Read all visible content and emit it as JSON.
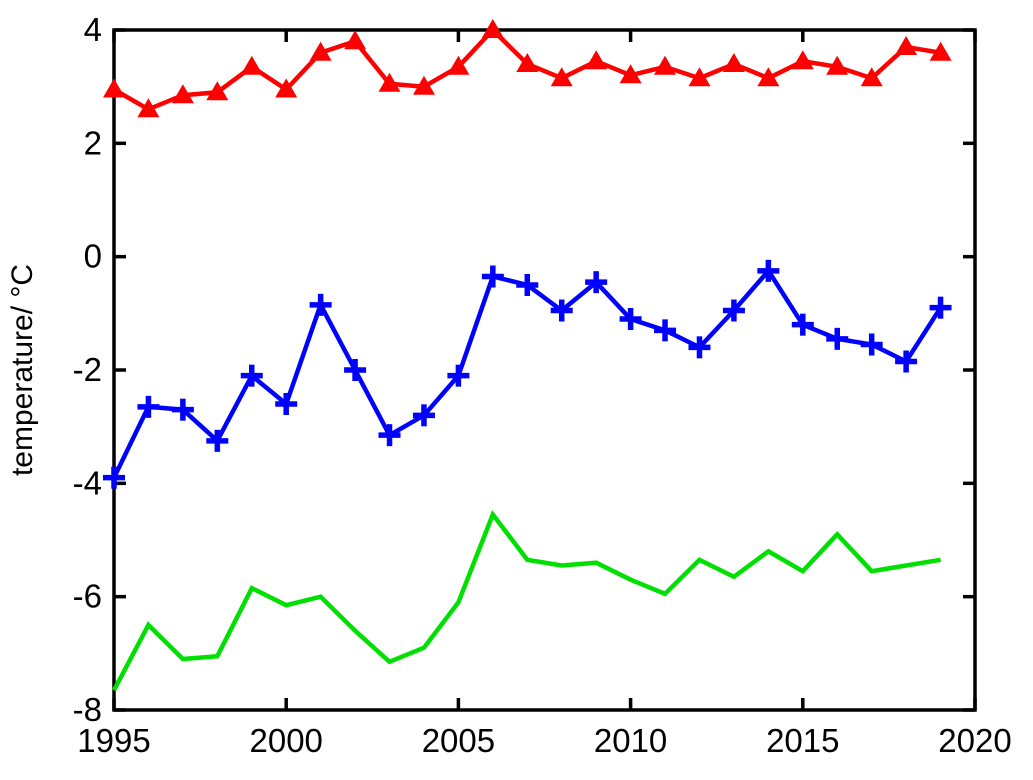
{
  "figure": {
    "background": "#ffffff",
    "axis_color": "#000000"
  },
  "chart_data": {
    "type": "line",
    "title": "",
    "xlabel": "",
    "ylabel": "temperature/ °C",
    "x": [
      1995,
      1996,
      1997,
      1998,
      1999,
      2000,
      2001,
      2002,
      2003,
      2004,
      2005,
      2006,
      2007,
      2008,
      2009,
      2010,
      2011,
      2012,
      2013,
      2014,
      2015,
      2016,
      2017,
      2018,
      2019
    ],
    "xlim": [
      1995,
      2020
    ],
    "ylim": [
      -8,
      4
    ],
    "xticks": [
      1995,
      2000,
      2005,
      2010,
      2015,
      2020
    ],
    "yticks": [
      -8,
      -6,
      -4,
      -2,
      0,
      2,
      4
    ],
    "xtick_labels": [
      "1995",
      "2000",
      "2005",
      "2010",
      "2015",
      "2020"
    ],
    "ytick_labels": [
      "-8",
      "-6",
      "-4",
      "-2",
      "0",
      "2",
      "4"
    ],
    "grid": false,
    "legend": "none",
    "box": true,
    "tick_direction": "in",
    "series": [
      {
        "name": "red_triangle_series",
        "color": "#ff0000",
        "marker": "triangle",
        "values": [
          2.95,
          2.6,
          2.85,
          2.9,
          3.35,
          2.95,
          3.6,
          3.8,
          3.05,
          3.0,
          3.35,
          4.0,
          3.4,
          3.15,
          3.45,
          3.2,
          3.35,
          3.15,
          3.4,
          3.15,
          3.45,
          3.35,
          3.15,
          3.7,
          3.6
        ]
      },
      {
        "name": "blue_plus_series",
        "color": "#0000ff",
        "marker": "plus",
        "values": [
          -3.9,
          -2.65,
          -2.7,
          -3.25,
          -2.1,
          -2.6,
          -0.85,
          -2.0,
          -3.15,
          -2.8,
          -2.1,
          -0.35,
          -0.5,
          -0.95,
          -0.45,
          -1.1,
          -1.3,
          -1.6,
          -0.95,
          -0.25,
          -1.2,
          -1.45,
          -1.55,
          -1.85,
          -0.9
        ]
      },
      {
        "name": "green_plain_series",
        "color": "#00e000",
        "marker": "none",
        "values": [
          -7.65,
          -6.5,
          -7.1,
          -7.05,
          -5.85,
          -6.15,
          -6.0,
          -6.6,
          -7.15,
          -6.9,
          -6.1,
          -4.55,
          -5.35,
          -5.45,
          -5.4,
          -5.7,
          -5.95,
          -5.35,
          -5.65,
          -5.2,
          -5.55,
          -4.9,
          -5.55,
          -5.45,
          -5.35
        ]
      }
    ]
  }
}
